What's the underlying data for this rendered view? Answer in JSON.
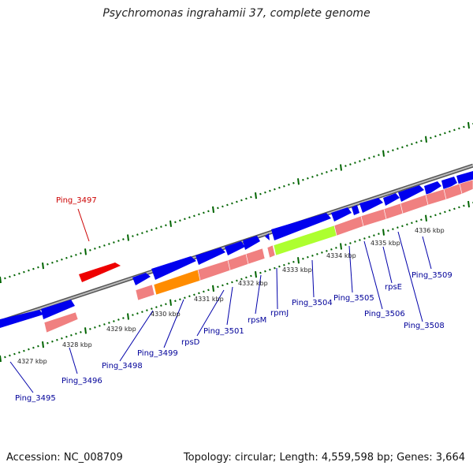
{
  "title": "Psychromonas ingrahamii 37, complete genome",
  "footer": {
    "accession": "Accession: NC_008709",
    "summary": "Topology: circular; Length: 4,559,598 bp; Genes: 3,664"
  },
  "kbp_ticks": [
    "4327 kbp",
    "4328 kbp",
    "4329 kbp",
    "4330 kbp",
    "4331 kbp",
    "4332 kbp",
    "4333 kbp",
    "4334 kbp",
    "4335 kbp",
    "4336 kbp"
  ],
  "gene_labels": [
    "Ping_3495",
    "Ping_3496",
    "Ping_3497",
    "Ping_3498",
    "Ping_3499",
    "rpsD",
    "Ping_3501",
    "rpsM",
    "rpmJ",
    "Ping_3504",
    "Ping_3505",
    "Ping_3506",
    "rpsE",
    "Ping_3508",
    "Ping_3509"
  ],
  "colors": {
    "forward_gene": "#0000ee",
    "reverse_gene": "#ff0000",
    "cds_track": "#f08080",
    "highlight_green": "#adff2f",
    "highlight_orange": "#ff8c00",
    "backbone": "#808080",
    "tick_mark": "#006400"
  }
}
